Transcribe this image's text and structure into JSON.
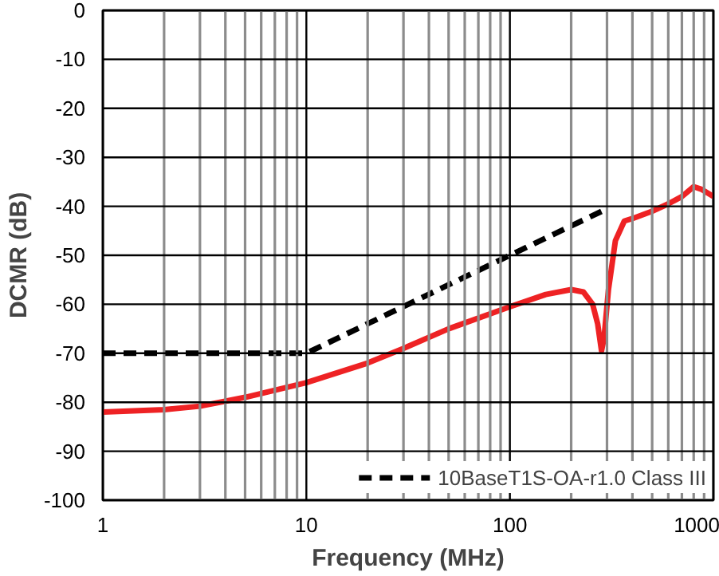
{
  "chart_data": {
    "type": "line",
    "xlabel": "Frequency (MHz)",
    "ylabel": "DCMR (dB)",
    "log": "x",
    "grid": true,
    "legend": "bottom right",
    "line_style": "solid",
    "marker": "none",
    "xlim": [
      1,
      1000
    ],
    "ylim": [
      -100,
      0
    ],
    "xticks": [
      1,
      {
        "value": 2,
        "label": null
      },
      {
        "value": 3,
        "label": null
      },
      {
        "value": 4,
        "label": null
      },
      {
        "value": 5,
        "label": null
      },
      {
        "value": 6,
        "label": null
      },
      {
        "value": 7,
        "label": null
      },
      {
        "value": 8,
        "label": null
      },
      {
        "value": 9,
        "label": null
      },
      10,
      {
        "value": 20,
        "label": null
      },
      {
        "value": 30,
        "label": null
      },
      {
        "value": 40,
        "label": null
      },
      {
        "value": 50,
        "label": null
      },
      {
        "value": 60,
        "label": null
      },
      {
        "value": 70,
        "label": null
      },
      {
        "value": 80,
        "label": null
      },
      {
        "value": 90,
        "label": null
      },
      100,
      {
        "value": 200,
        "label": null
      },
      {
        "value": 300,
        "label": null
      },
      {
        "value": 400,
        "label": null
      },
      {
        "value": 500,
        "label": null
      },
      {
        "value": 600,
        "label": null
      },
      {
        "value": 700,
        "label": null
      },
      {
        "value": 800,
        "label": null
      },
      {
        "value": 900,
        "label": null
      },
      1000
    ],
    "yticks": [
      0,
      -10,
      -20,
      -30,
      -40,
      -50,
      -60,
      -70,
      -80,
      -90,
      -100
    ],
    "series": [
      {
        "color": "#ee2224",
        "x": [
          1,
          2,
          3,
          5,
          10,
          20,
          30,
          50,
          100,
          150,
          200,
          230,
          255,
          270,
          282,
          290,
          305,
          330,
          365,
          400,
          500,
          600,
          700,
          800,
          870,
          1000
        ],
        "values": [
          -82,
          -81.5,
          -80.8,
          -79,
          -76,
          -72,
          -69,
          -65,
          -60.5,
          -58,
          -57,
          -57.5,
          -60,
          -64,
          -69.5,
          -67,
          -57,
          -47,
          -43,
          -42.5,
          -41,
          -39.5,
          -38,
          -36,
          -36.5,
          -38
        ]
      },
      {
        "name": "10BaseT1S-OA-r1.0 Class III",
        "color": "#000000",
        "line_style": "dashed",
        "x": [
          1,
          10,
          100,
          300
        ],
        "values": [
          -70,
          -70,
          -50,
          -40.5
        ]
      }
    ]
  }
}
